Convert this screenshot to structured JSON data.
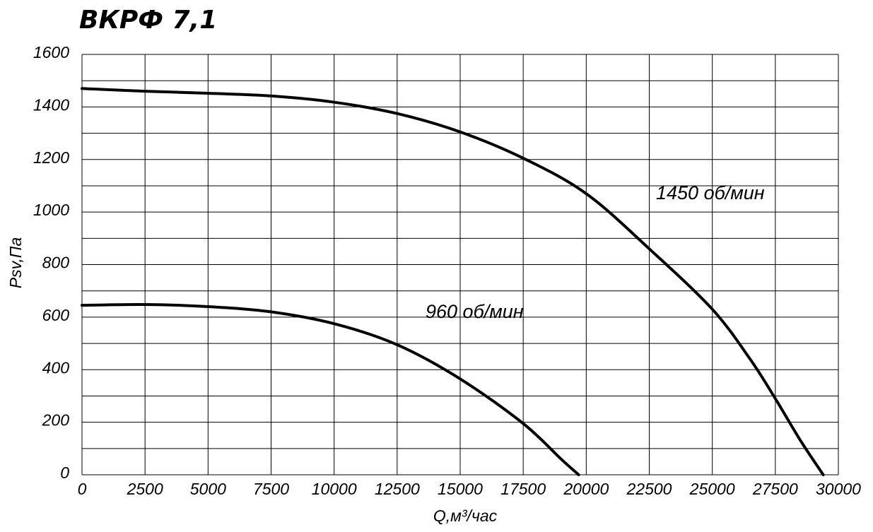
{
  "chart_data": {
    "type": "line",
    "title": "ВКРФ 7,1",
    "xlabel": "Q,м³/час",
    "ylabel": "Psv,Па",
    "xlim": [
      0,
      30000
    ],
    "ylim": [
      0,
      1600
    ],
    "x_ticks": [
      "0",
      "2500",
      "5000",
      "7500",
      "10000",
      "12500",
      "15000",
      "17500",
      "20000",
      "22500",
      "25000",
      "27500",
      "30000"
    ],
    "y_ticks": [
      "0",
      "200",
      "400",
      "600",
      "800",
      "1000",
      "1200",
      "1400",
      "1600"
    ],
    "grid": true,
    "series": [
      {
        "name": "1450 об/мин",
        "x": [
          0,
          2500,
          5000,
          7500,
          10000,
          12500,
          15000,
          17500,
          20000,
          22500,
          25000,
          26500,
          27500,
          28500,
          29400
        ],
        "y": [
          1470,
          1460,
          1452,
          1442,
          1418,
          1375,
          1305,
          1205,
          1070,
          860,
          630,
          440,
          290,
          130,
          0
        ]
      },
      {
        "name": "960 об/мин",
        "x": [
          0,
          2500,
          5000,
          7500,
          10000,
          12500,
          15000,
          17500,
          19000,
          19700
        ],
        "y": [
          645,
          648,
          640,
          620,
          575,
          495,
          365,
          195,
          60,
          0
        ]
      }
    ]
  }
}
